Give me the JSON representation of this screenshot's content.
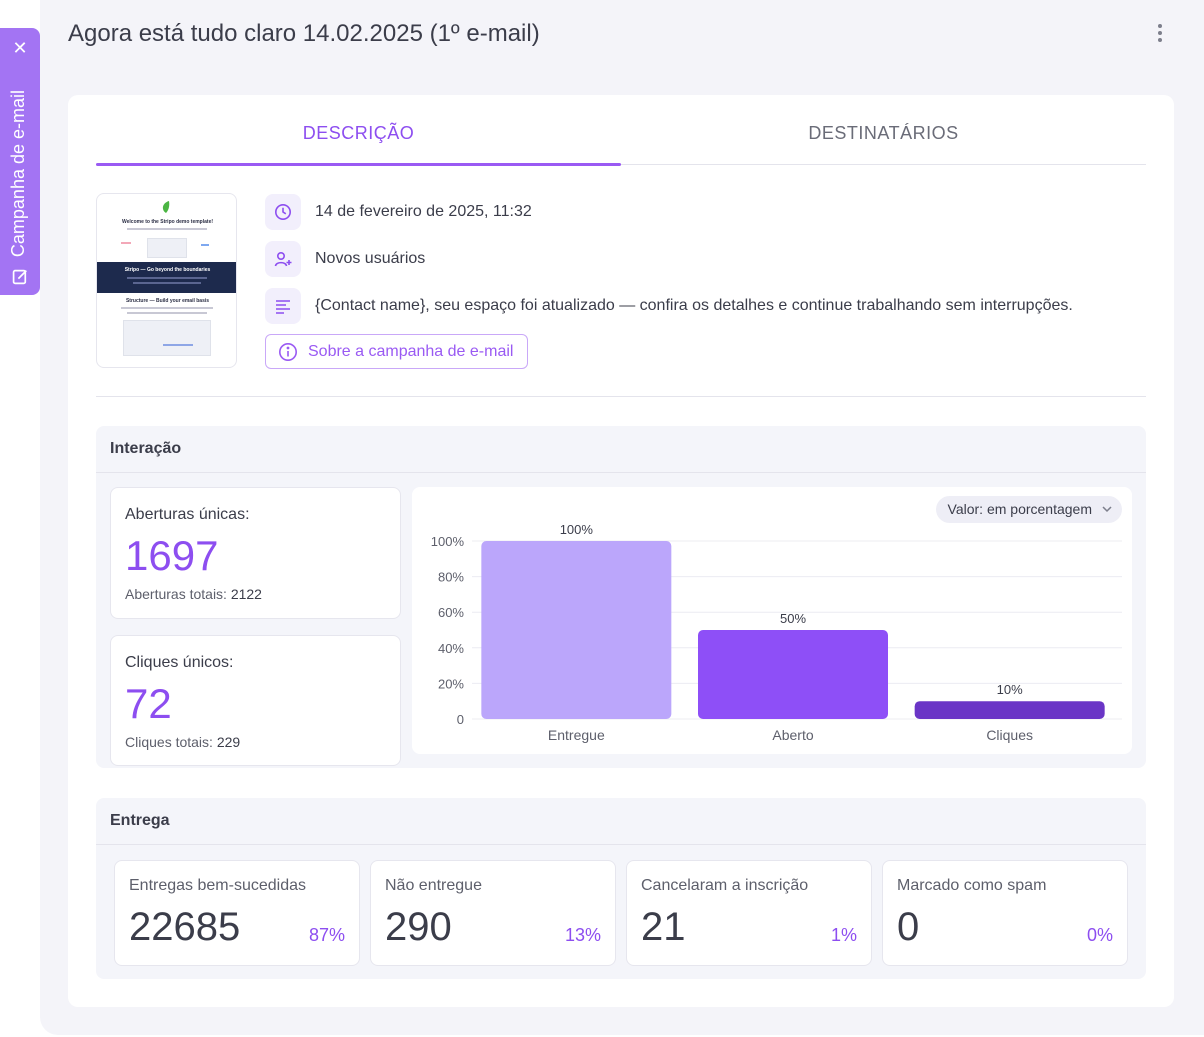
{
  "side_tab": {
    "label": "Campanha de e-mail"
  },
  "header": {
    "title": "Agora está tudo claro 14.02.2025 (1º e-mail)"
  },
  "tabs": [
    {
      "label": "DESCRIÇÃO",
      "active": true
    },
    {
      "label": "DESTINATÁRIOS",
      "active": false
    }
  ],
  "thumbnail": {
    "title": "Welcome to the Stripo demo template!",
    "band_title": "Stripo — Go beyond the boundaries",
    "structure_title": "Structure — Build your email basis"
  },
  "details": {
    "date": "14 de fevereiro de 2025, 11:32",
    "segment": "Novos usuários",
    "preheader": "{Contact name}, seu espaço foi atualizado — confira os detalhes e continue trabalhando sem interrupções.",
    "about_button": "Sobre a campanha de e-mail"
  },
  "interaction": {
    "title": "Interação",
    "unique_opens": {
      "label": "Aberturas únicas:",
      "value": "1697",
      "total_label": "Aberturas totais:",
      "total_value": "2122"
    },
    "unique_clicks": {
      "label": "Cliques únicos:",
      "value": "72",
      "total_label": "Cliques totais:",
      "total_value": "229"
    },
    "select_label": "Valor: em porcentagem"
  },
  "chart_data": {
    "type": "bar",
    "categories": [
      "Entregue",
      "Aberto",
      "Cliques"
    ],
    "values": [
      100,
      50,
      10
    ],
    "value_labels": [
      "100%",
      "50%",
      "10%"
    ],
    "colors": [
      "#bba6fb",
      "#8e4ff7",
      "#6a35c6"
    ],
    "yticks": [
      "0",
      "20%",
      "40%",
      "60%",
      "80%",
      "100%"
    ],
    "ylim": [
      0,
      100
    ],
    "title": "",
    "xlabel": "",
    "ylabel": "",
    "grid": true
  },
  "delivery": {
    "title": "Entrega",
    "cards": [
      {
        "label": "Entregas bem-sucedidas",
        "value": "22685",
        "pct": "87%"
      },
      {
        "label": "Não entregue",
        "value": "290",
        "pct": "13%"
      },
      {
        "label": "Cancelaram a inscrição",
        "value": "21",
        "pct": "1%"
      },
      {
        "label": "Marcado como spam",
        "value": "0",
        "pct": "0%"
      }
    ]
  },
  "colors": {
    "accent": "#8d4ef0",
    "side_tab": "#a374f3",
    "panel_bg": "#f4f4f9"
  }
}
